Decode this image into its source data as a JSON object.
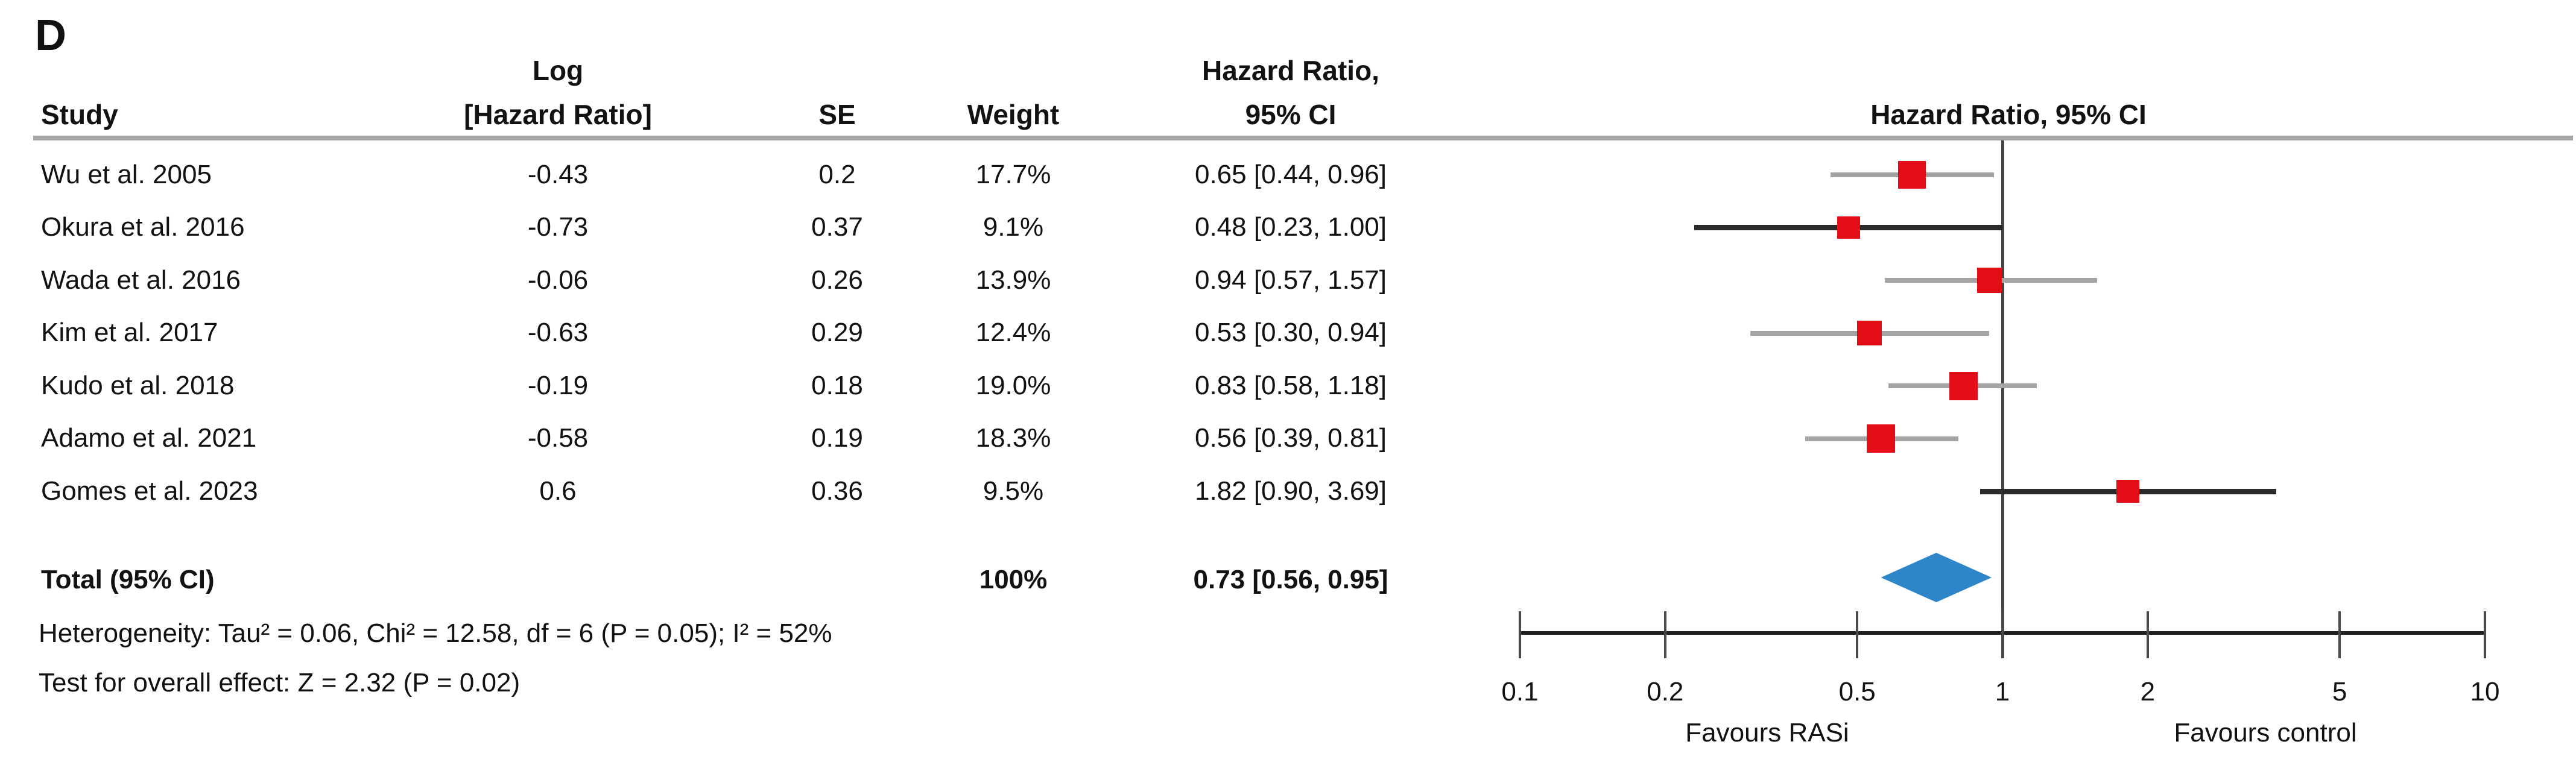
{
  "panel_label": "D",
  "colors": {
    "marker_red": "#e30d17",
    "diamond_blue": "#2e86c9",
    "ci_light_gray": "#a4a4a4",
    "ci_dark": "#2b2b2b",
    "separator_gray": "#a6a6a6",
    "axis_black": "#1f1f1f",
    "text": "#121212"
  },
  "table": {
    "headers": {
      "study": "Study",
      "log_line1": "Log",
      "log_line2": "[Hazard Ratio]",
      "se": "SE",
      "weight": "Weight",
      "hr_line1": "Hazard Ratio,",
      "hr_line2": "95% CI"
    },
    "rows": [
      {
        "study": "Wu et al. 2005",
        "log_hr": "-0.43",
        "se": "0.2",
        "weight": "17.7%",
        "hr_ci": "0.65 [0.44, 0.96]"
      },
      {
        "study": "Okura et al. 2016",
        "log_hr": "-0.73",
        "se": "0.37",
        "weight": "9.1%",
        "hr_ci": "0.48 [0.23, 1.00]"
      },
      {
        "study": "Wada et al. 2016",
        "log_hr": "-0.06",
        "se": "0.26",
        "weight": "13.9%",
        "hr_ci": "0.94 [0.57, 1.57]"
      },
      {
        "study": "Kim et al. 2017",
        "log_hr": "-0.63",
        "se": "0.29",
        "weight": "12.4%",
        "hr_ci": "0.53 [0.30, 0.94]"
      },
      {
        "study": "Kudo et al. 2018",
        "log_hr": "-0.19",
        "se": "0.18",
        "weight": "19.0%",
        "hr_ci": "0.83 [0.58, 1.18]"
      },
      {
        "study": "Adamo et al. 2021",
        "log_hr": "-0.58",
        "se": "0.19",
        "weight": "18.3%",
        "hr_ci": "0.56 [0.39, 0.81]"
      },
      {
        "study": "Gomes et al. 2023",
        "log_hr": "0.6",
        "se": "0.36",
        "weight": "9.5%",
        "hr_ci": "1.82 [0.90, 3.69]"
      }
    ],
    "total_row": {
      "label": "Total (95% CI)",
      "weight": "100%",
      "hr_ci": "0.73 [0.56, 0.95]"
    }
  },
  "footnotes": {
    "heterogeneity": "Heterogeneity: Tau² = 0.06, Chi² = 12.58, df = 6 (P = 0.05); I² = 52%",
    "overall_effect": "Test for overall effect: Z = 2.32 (P = 0.02)"
  },
  "plot": {
    "header": "Hazard Ratio, 95% CI",
    "favours_left": "Favours RASi",
    "favours_right": "Favours control"
  },
  "chart_data": {
    "type": "forest",
    "x_scale": "log",
    "x_ticks": [
      {
        "value": 0.1,
        "label": "0.1"
      },
      {
        "value": 0.2,
        "label": "0.2"
      },
      {
        "value": 0.5,
        "label": "0.5"
      },
      {
        "value": 1,
        "label": "1"
      },
      {
        "value": 2,
        "label": "2"
      },
      {
        "value": 5,
        "label": "5"
      },
      {
        "value": 10,
        "label": "10"
      }
    ],
    "null_line_value": 1,
    "studies": [
      {
        "name": "Wu et al. 2005",
        "log_hr": -0.43,
        "se": 0.2,
        "weight_pct": 17.7,
        "hr": 0.65,
        "ci_low": 0.44,
        "ci_high": 0.96,
        "ci_style": "light"
      },
      {
        "name": "Okura et al. 2016",
        "log_hr": -0.73,
        "se": 0.37,
        "weight_pct": 9.1,
        "hr": 0.48,
        "ci_low": 0.23,
        "ci_high": 1.0,
        "ci_style": "dark"
      },
      {
        "name": "Wada et al. 2016",
        "log_hr": -0.06,
        "se": 0.26,
        "weight_pct": 13.9,
        "hr": 0.94,
        "ci_low": 0.57,
        "ci_high": 1.57,
        "ci_style": "light"
      },
      {
        "name": "Kim et al. 2017",
        "log_hr": -0.63,
        "se": 0.29,
        "weight_pct": 12.4,
        "hr": 0.53,
        "ci_low": 0.3,
        "ci_high": 0.94,
        "ci_style": "light"
      },
      {
        "name": "Kudo et al. 2018",
        "log_hr": -0.19,
        "se": 0.18,
        "weight_pct": 19.0,
        "hr": 0.83,
        "ci_low": 0.58,
        "ci_high": 1.18,
        "ci_style": "light"
      },
      {
        "name": "Adamo et al. 2021",
        "log_hr": -0.58,
        "se": 0.19,
        "weight_pct": 18.3,
        "hr": 0.56,
        "ci_low": 0.39,
        "ci_high": 0.81,
        "ci_style": "light"
      },
      {
        "name": "Gomes et al. 2023",
        "log_hr": 0.6,
        "se": 0.36,
        "weight_pct": 9.5,
        "hr": 1.82,
        "ci_low": 0.9,
        "ci_high": 3.69,
        "ci_style": "dark"
      }
    ],
    "total": {
      "label": "Total (95% CI)",
      "weight_pct": 100,
      "hr": 0.73,
      "ci_low": 0.56,
      "ci_high": 0.95
    },
    "heterogeneity": {
      "tau2": 0.06,
      "chi2": 12.58,
      "df": 6,
      "p": 0.05,
      "i2_pct": 52
    },
    "overall_effect": {
      "z": 2.32,
      "p": 0.02
    },
    "favours_left": "Favours RASi",
    "favours_right": "Favours control"
  }
}
